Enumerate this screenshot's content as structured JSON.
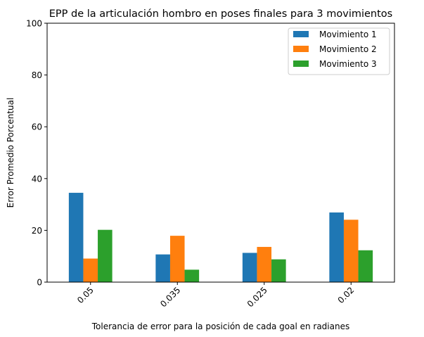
{
  "chart_data": {
    "type": "bar",
    "title": "EPP de la articulación hombro en poses finales para 3 movimientos",
    "xlabel": "Tolerancia de error para la posición de cada goal en radianes",
    "ylabel": "Error Promedio Porcentual",
    "categories": [
      "0.05",
      "0.035",
      "0.025",
      "0.02"
    ],
    "ylim": [
      0,
      100
    ],
    "yticks": [
      0,
      20,
      40,
      60,
      80,
      100
    ],
    "grid": false,
    "legend_position": "top-right",
    "series": [
      {
        "name": "Movimiento 1",
        "color": "#1f77b4",
        "values": [
          34.5,
          10.7,
          11.3,
          26.9
        ]
      },
      {
        "name": "Movimiento 2",
        "color": "#ff7f0e",
        "values": [
          9.1,
          17.9,
          13.6,
          24.1
        ]
      },
      {
        "name": "Movimiento 3",
        "color": "#2ca02c",
        "values": [
          20.2,
          4.8,
          8.8,
          12.3
        ]
      }
    ]
  }
}
